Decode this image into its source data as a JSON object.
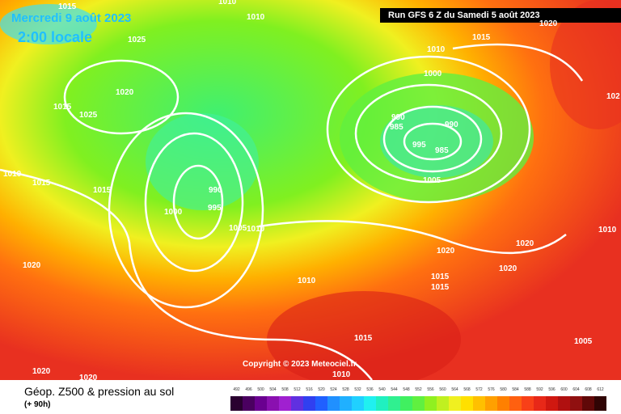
{
  "header": {
    "title": "Mercredi 9 août 2023",
    "time": "2:00 locale",
    "run": "Run GFS 6 Z du Samedi 5 août 2023"
  },
  "isobar_labels": [
    "1015",
    "1010",
    "1010",
    "1025",
    "1020",
    "1015",
    "1025",
    "1010",
    "1015",
    "1015",
    "990",
    "995",
    "1000",
    "1005",
    "1010",
    "1020",
    "1010",
    "1015",
    "1010",
    "1000",
    "990",
    "985",
    "990",
    "995",
    "985",
    "1005",
    "1020",
    "1020",
    "1020",
    "1015",
    "1015",
    "1015",
    "1005",
    "1010",
    "102",
    "1020",
    "1020",
    "1010",
    "1020"
  ],
  "copyright": "Copyright © 2023 Meteociel.fr",
  "legend": {
    "title": "Géop. Z500 & pression au sol",
    "lead": "(+ 90h)",
    "scale": [
      "492",
      "496",
      "500",
      "504",
      "508",
      "512",
      "516",
      "520",
      "524",
      "528",
      "532",
      "536",
      "540",
      "544",
      "548",
      "552",
      "556",
      "560",
      "564",
      "568",
      "572",
      "576",
      "580",
      "584",
      "588",
      "592",
      "596",
      "600",
      "604",
      "608",
      "612"
    ]
  }
}
